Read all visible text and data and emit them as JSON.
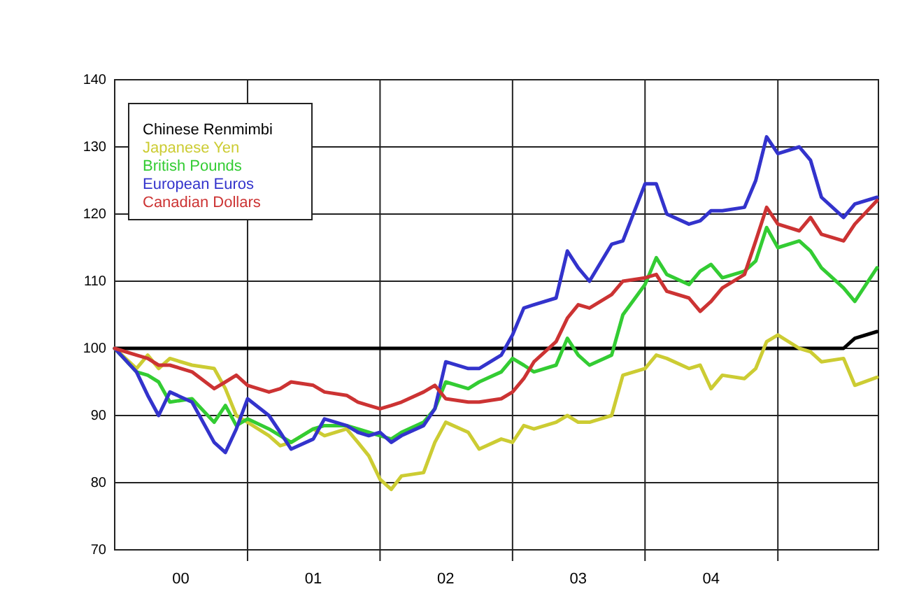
{
  "chart_data": {
    "type": "line",
    "xlim": [
      "2000-01-01",
      "2005-10-05"
    ],
    "ylim": [
      70,
      140
    ],
    "yticks": [
      70,
      80,
      90,
      100,
      110,
      120,
      130,
      140
    ],
    "xticks": [
      {
        "value": "2000-07-01",
        "label": "00"
      },
      {
        "value": "2001-01-01",
        "label": null
      },
      {
        "value": "2001-07-01",
        "label": "01"
      },
      {
        "value": "2002-01-01",
        "label": null
      },
      {
        "value": "2002-07-01",
        "label": "02"
      },
      {
        "value": "2003-01-01",
        "label": null
      },
      {
        "value": "2003-07-01",
        "label": "03"
      },
      {
        "value": "2004-01-01",
        "label": null
      },
      {
        "value": "2004-07-01",
        "label": "04"
      },
      {
        "value": "2005-01-01",
        "label": null
      }
    ],
    "grid": true,
    "legend": "top left",
    "line_style": "solid",
    "marker": "none",
    "x": [
      "2000-01",
      "2000-03",
      "2000-04",
      "2000-05",
      "2000-06",
      "2000-08",
      "2000-10",
      "2000-11",
      "2000-12",
      "2001-01",
      "2001-03",
      "2001-04",
      "2001-05",
      "2001-07",
      "2001-08",
      "2001-10",
      "2001-11",
      "2001-12",
      "2002-01",
      "2002-02",
      "2002-03",
      "2002-05",
      "2002-06",
      "2002-07",
      "2002-09",
      "2002-10",
      "2002-12",
      "2003-01",
      "2003-02",
      "2003-03",
      "2003-05",
      "2003-06",
      "2003-07",
      "2003-08",
      "2003-10",
      "2003-11",
      "2004-01",
      "2004-02",
      "2004-03",
      "2004-05",
      "2004-06",
      "2004-07",
      "2004-08",
      "2004-10",
      "2004-11",
      "2004-12",
      "2005-01",
      "2005-03",
      "2005-04",
      "2005-05",
      "2005-07",
      "2005-08",
      "2005-10"
    ],
    "series": [
      {
        "name": "Chinese Renmimbi",
        "color": "#000000",
        "x": [
          "2000-01",
          "2005-07",
          "2005-08",
          "2005-10"
        ],
        "values": [
          100,
          100,
          101.5,
          102.5
        ]
      },
      {
        "name": "Japanese Yen",
        "color": "#cccc33",
        "values": [
          100,
          97,
          99,
          97,
          98.5,
          97.5,
          97,
          94,
          90,
          89,
          87,
          85.5,
          86,
          88,
          87,
          88,
          86,
          84,
          80.5,
          79,
          81,
          81.5,
          86,
          89,
          87.5,
          85,
          86.5,
          86,
          88.5,
          88,
          89,
          90,
          89,
          89,
          90,
          96,
          97,
          99,
          98.5,
          97,
          97.5,
          94,
          96,
          95.5,
          97,
          101,
          102,
          100,
          99.5,
          98,
          98.5,
          94.5,
          95.7
        ]
      },
      {
        "name": "British Pounds",
        "color": "#33cc33",
        "values": [
          100,
          96.5,
          96,
          95,
          92,
          92.5,
          89,
          91.5,
          88.5,
          89.5,
          88,
          87,
          86,
          88,
          88.5,
          88.5,
          88,
          87.5,
          87,
          86.5,
          87.5,
          89,
          91,
          95,
          94,
          95,
          96.5,
          98.5,
          97.5,
          96.5,
          97.5,
          101.5,
          99,
          97.5,
          99,
          105,
          109.5,
          113.5,
          111,
          109.5,
          111.5,
          112.5,
          110.5,
          111.5,
          113,
          118,
          115,
          116,
          114.5,
          112,
          109,
          107,
          112
        ]
      },
      {
        "name": "European Euros",
        "color": "#3333cc",
        "values": [
          100,
          96.5,
          93,
          90,
          93.5,
          92,
          86,
          84.5,
          88,
          92.5,
          90,
          87.5,
          85,
          86.5,
          89.5,
          88.5,
          87.5,
          87,
          87.5,
          86,
          87,
          88.5,
          91,
          98,
          97,
          97,
          99,
          102,
          106,
          106.5,
          107.5,
          114.5,
          112,
          110,
          115.5,
          116,
          124.5,
          124.5,
          120,
          118.5,
          119,
          120.5,
          120.5,
          121,
          125,
          131.5,
          129,
          130,
          128,
          122.5,
          119.5,
          121.5,
          122.5
        ]
      },
      {
        "name": "Canadian Dollars",
        "color": "#cc3333",
        "values": [
          100,
          99,
          98.5,
          97.5,
          97.5,
          96.5,
          94,
          95,
          96,
          94.5,
          93.5,
          94,
          95,
          94.5,
          93.5,
          93,
          92,
          91.5,
          91,
          91.5,
          92,
          93.5,
          94.5,
          92.5,
          92,
          92,
          92.5,
          93.5,
          95.5,
          98,
          101,
          104.5,
          106.5,
          106,
          108,
          110,
          110.5,
          111,
          108.5,
          107.5,
          105.5,
          107,
          109,
          111,
          116,
          121,
          118.5,
          117.5,
          119.5,
          117,
          116,
          118.5,
          122
        ]
      }
    ]
  }
}
